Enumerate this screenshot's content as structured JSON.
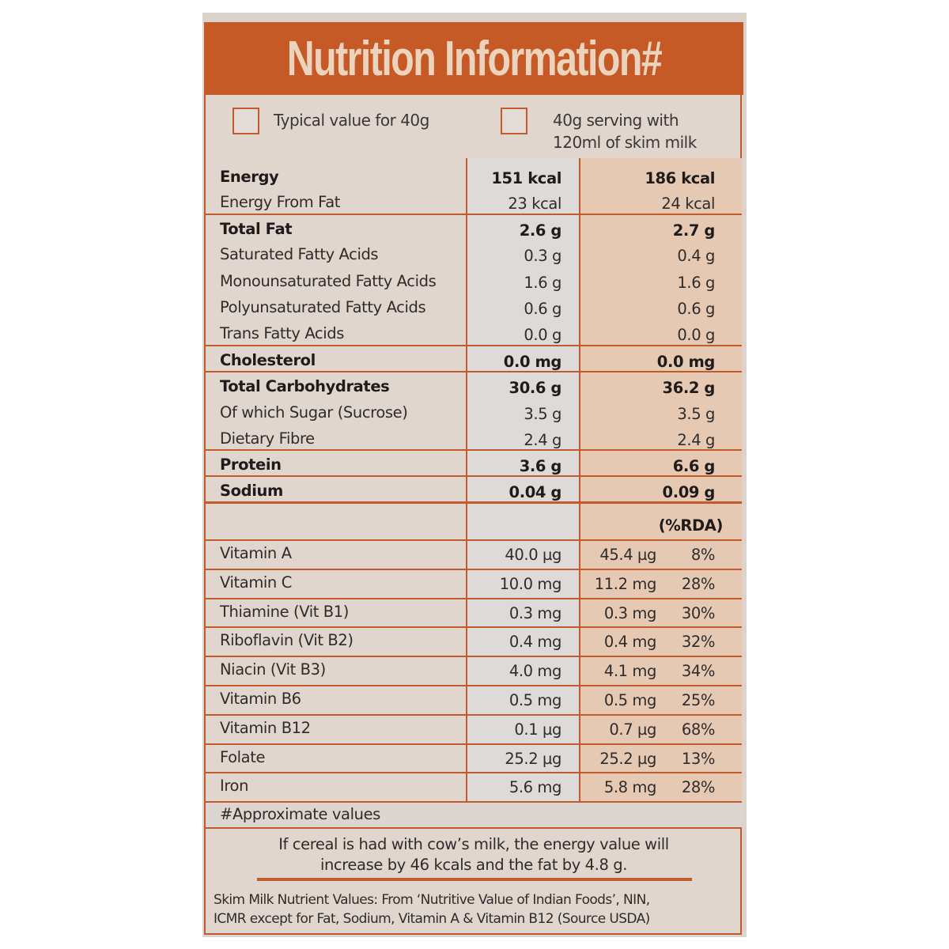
{
  "title": "Nutrition Information#",
  "colors": {
    "accent": "#c55a26",
    "title_text": "#ecd3bd",
    "col_light": "#dedad7",
    "col_peach": "#e5c9b3",
    "paper": "#e0d6ce"
  },
  "legend": {
    "col1": "Typical value for 40g",
    "col2_line1": "40g serving with",
    "col2_line2": "120ml of skim milk"
  },
  "macros": [
    {
      "label": "Energy",
      "v40": "151 kcal",
      "vmilk": "186 kcal",
      "bold": true
    },
    {
      "label": "Energy From Fat",
      "v40": "23 kcal",
      "vmilk": "24 kcal",
      "bold": false
    },
    {
      "label": "Total Fat",
      "v40": "2.6 g",
      "vmilk": "2.7 g",
      "bold": true
    },
    {
      "label": "Saturated Fatty Acids",
      "v40": "0.3 g",
      "vmilk": "0.4 g",
      "bold": false
    },
    {
      "label": "Monounsaturated Fatty Acids",
      "v40": "1.6 g",
      "vmilk": "1.6 g",
      "bold": false
    },
    {
      "label": "Polyunsaturated Fatty Acids",
      "v40": "0.6 g",
      "vmilk": "0.6 g",
      "bold": false
    },
    {
      "label": "Trans Fatty Acids",
      "v40": "0.0 g",
      "vmilk": "0.0 g",
      "bold": false
    },
    {
      "label": "Cholesterol",
      "v40": "0.0 mg",
      "vmilk": "0.0 mg",
      "bold": true
    },
    {
      "label": "Total Carbohydrates",
      "v40": "30.6 g",
      "vmilk": "36.2 g",
      "bold": true
    },
    {
      "label": "Of which Sugar (Sucrose)",
      "v40": "3.5 g",
      "vmilk": "3.5 g",
      "bold": false
    },
    {
      "label": "Dietary Fibre",
      "v40": "2.4 g",
      "vmilk": "2.4 g",
      "bold": false
    },
    {
      "label": "Protein",
      "v40": "3.6 g",
      "vmilk": "6.6 g",
      "bold": true
    },
    {
      "label": "Sodium",
      "v40": "0.04 g",
      "vmilk": "0.09 g",
      "bold": true
    }
  ],
  "rda_header": "(%RDA)",
  "vitamins": [
    {
      "label": "Vitamin A",
      "v40": "40.0 µg",
      "vmilk": "45.4 µg",
      "rda": "8%"
    },
    {
      "label": "Vitamin C",
      "v40": "10.0 mg",
      "vmilk": "11.2 mg",
      "rda": "28%"
    },
    {
      "label": "Thiamine (Vit B1)",
      "v40": "0.3 mg",
      "vmilk": "0.3 mg",
      "rda": "30%"
    },
    {
      "label": "Riboflavin (Vit B2)",
      "v40": "0.4 mg",
      "vmilk": "0.4 mg",
      "rda": "32%"
    },
    {
      "label": "Niacin (Vit B3)",
      "v40": "4.0 mg",
      "vmilk": "4.1 mg",
      "rda": "34%"
    },
    {
      "label": "Vitamin B6",
      "v40": "0.5 mg",
      "vmilk": "0.5 mg",
      "rda": "25%"
    },
    {
      "label": "Vitamin B12",
      "v40": "0.1 µg",
      "vmilk": "0.7 µg",
      "rda": "68%"
    },
    {
      "label": "Folate",
      "v40": "25.2 µg",
      "vmilk": "25.2 µg",
      "rda": "13%"
    },
    {
      "label": "Iron",
      "v40": "5.6 mg",
      "vmilk": "5.8 mg",
      "rda": "28%"
    }
  ],
  "footnote": "#Approximate values",
  "cow_milk_note_line1": "If cereal is had with cow’s milk, the energy value will",
  "cow_milk_note_line2": "increase by 46 kcals and the fat by 4.8 g.",
  "source_line1": "Skim Milk Nutrient Values: From ‘Nutritive Value of Indian Foods’, NIN,",
  "source_line2": "ICMR except for Fat, Sodium, Vitamin A & Vitamin B12 (Source USDA)"
}
